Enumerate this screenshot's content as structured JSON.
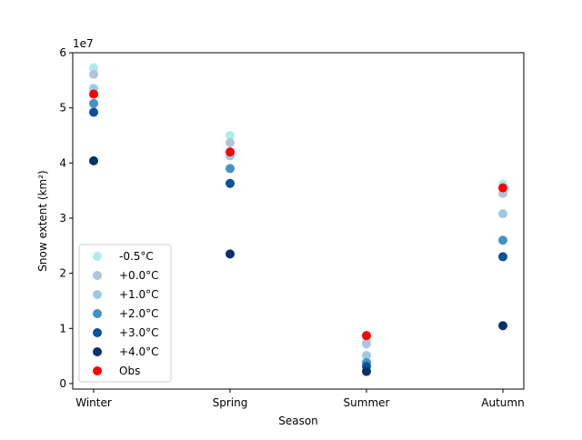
{
  "chart_data": {
    "type": "scatter",
    "title": "",
    "xlabel": "Season",
    "ylabel": "Snow extent (km²)",
    "y_offset_label": "1e7",
    "categories": [
      "Winter",
      "Spring",
      "Summer",
      "Autumn"
    ],
    "ylim": [
      -0.1,
      6.0
    ],
    "yticks": [
      0,
      1,
      2,
      3,
      4,
      5,
      6
    ],
    "ytick_labels": [
      "0",
      "1",
      "2",
      "3",
      "4",
      "5",
      "6"
    ],
    "legend_position": "lower-left",
    "grid": false,
    "series": [
      {
        "name": "-0.5°C",
        "color": "#b0ecec",
        "values": [
          5.73,
          4.5,
          0.78,
          3.62
        ]
      },
      {
        "name": "+0.0°C",
        "color": "#b0c4de",
        "values": [
          5.61,
          4.37,
          0.72,
          3.45
        ]
      },
      {
        "name": "+1.0°C",
        "color": "#9ecae1",
        "values": [
          5.35,
          4.13,
          0.51,
          3.08
        ]
      },
      {
        "name": "+2.0°C",
        "color": "#4292c6",
        "values": [
          5.08,
          3.9,
          0.38,
          2.6
        ]
      },
      {
        "name": "+3.0°C",
        "color": "#08519c",
        "values": [
          4.92,
          3.63,
          0.31,
          2.3
        ]
      },
      {
        "name": "+4.0°C",
        "color": "#08306b",
        "values": [
          4.04,
          2.35,
          0.22,
          1.05
        ]
      },
      {
        "name": "Obs",
        "color": "#ff0000",
        "values": [
          5.25,
          4.2,
          0.87,
          3.55
        ]
      }
    ]
  }
}
